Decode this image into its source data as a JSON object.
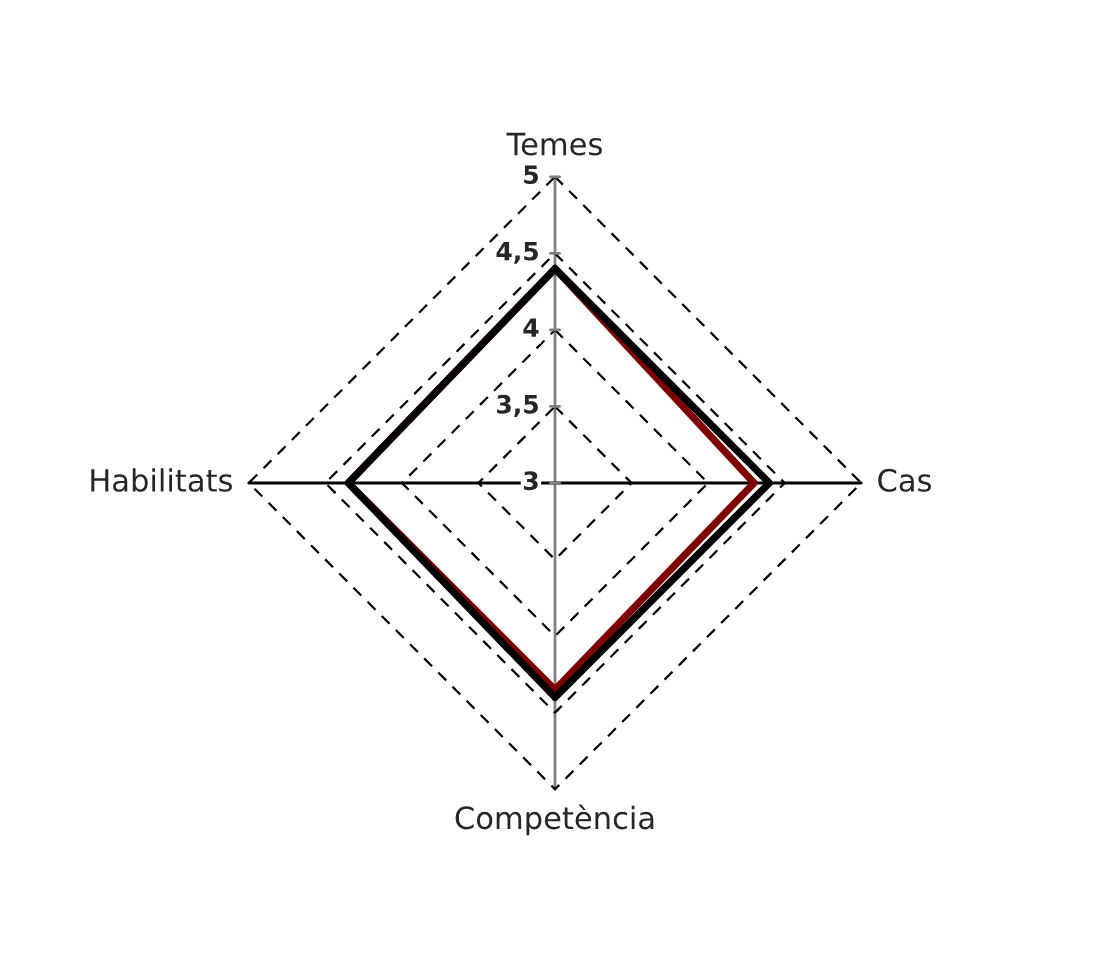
{
  "chart_data": {
    "type": "radar",
    "categories": [
      "Temes",
      "Cas",
      "Competència",
      "Habilitats"
    ],
    "series": [
      {
        "color": "#800000",
        "values": [
          4.4,
          4.3,
          4.35,
          4.35
        ]
      },
      {
        "color": "#000000",
        "values": [
          4.4,
          4.4,
          4.4,
          4.35
        ]
      }
    ],
    "ylim": [
      3,
      5
    ],
    "yticks": [
      3,
      {
        "value": 3.5,
        "label": "3,5"
      },
      4,
      {
        "value": 4.5,
        "label": "4,5"
      },
      5
    ],
    "grid": true
  }
}
